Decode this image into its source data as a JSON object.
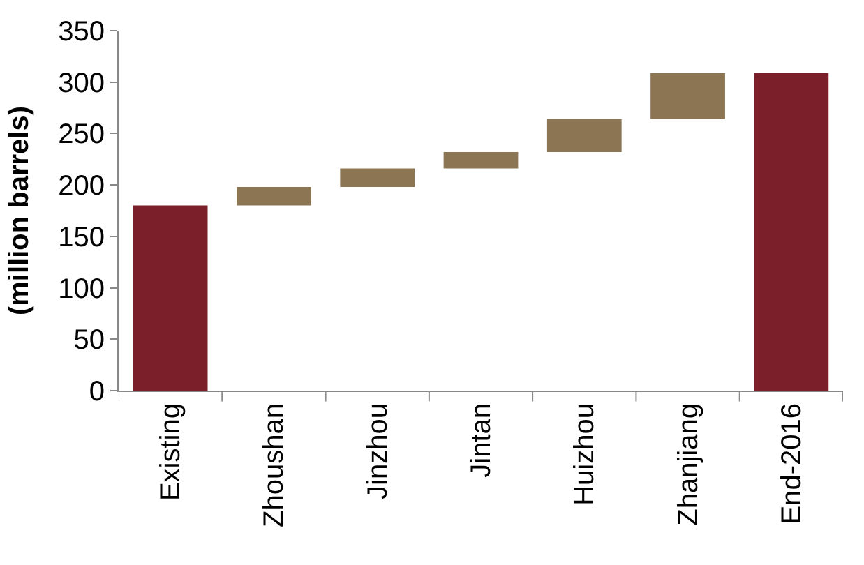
{
  "chart_data": {
    "type": "bar",
    "ylabel": "(million barrels)",
    "categories": [
      "Existing",
      "Zhoushan",
      "Jinzhou",
      "Jintan",
      "Huizhou",
      "Zhanjiang",
      "End-2016"
    ],
    "values": [
      180,
      18,
      18,
      16,
      32,
      45,
      309
    ],
    "base": [
      0,
      180,
      198,
      216,
      232,
      264,
      0
    ],
    "colors": [
      "#7b1f2b",
      "#8b7553",
      "#8b7553",
      "#8b7553",
      "#8b7553",
      "#8b7553",
      "#7b1f2b"
    ],
    "ylim": [
      0,
      350
    ],
    "yticks": [
      0,
      50,
      100,
      150,
      200,
      250,
      300,
      350
    ]
  }
}
